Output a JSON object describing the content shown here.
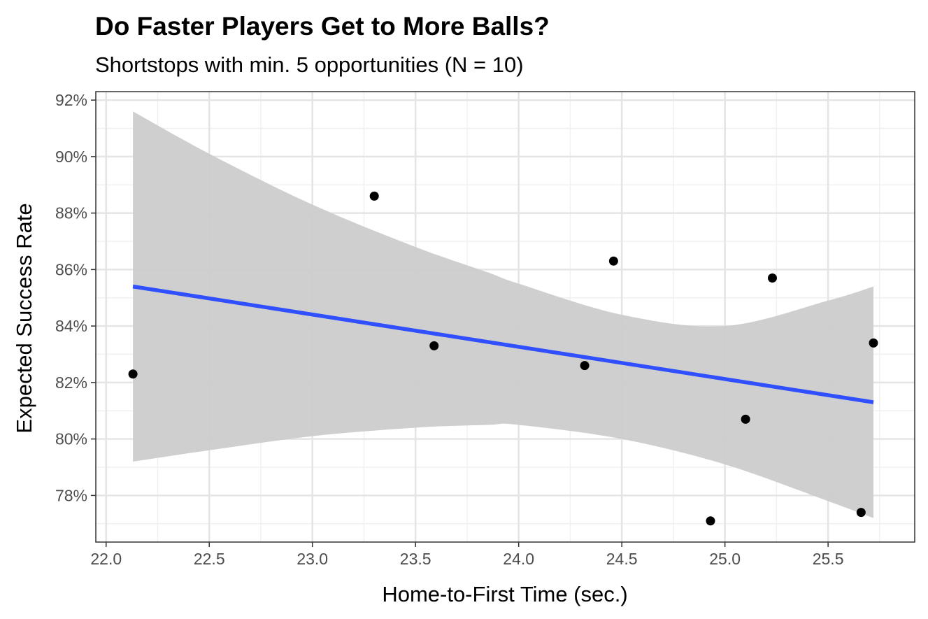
{
  "chart_data": {
    "type": "scatter",
    "title": "Do Faster Players Get to More Balls?",
    "subtitle": "Shortstops with min. 5 opportunities (N = 10)",
    "xlabel": "Home-to-First Time (sec.)",
    "ylabel": "Expected Success Rate",
    "xlim": [
      21.95,
      25.92
    ],
    "ylim": [
      76.35,
      92.3
    ],
    "x_ticks": [
      22.0,
      22.5,
      23.0,
      23.5,
      24.0,
      24.5,
      25.0,
      25.5
    ],
    "x_tick_labels": [
      "22.0",
      "22.5",
      "23.0",
      "23.5",
      "24.0",
      "24.5",
      "25.0",
      "25.5"
    ],
    "y_ticks": [
      78,
      80,
      82,
      84,
      86,
      88,
      90,
      92
    ],
    "y_tick_labels": [
      "78%",
      "80%",
      "82%",
      "84%",
      "86%",
      "88%",
      "90%",
      "92%"
    ],
    "grid": true,
    "points": [
      {
        "x": 22.13,
        "y": 82.3
      },
      {
        "x": 23.3,
        "y": 88.6
      },
      {
        "x": 23.59,
        "y": 83.3
      },
      {
        "x": 24.32,
        "y": 82.6
      },
      {
        "x": 24.46,
        "y": 86.3
      },
      {
        "x": 24.93,
        "y": 77.1
      },
      {
        "x": 25.1,
        "y": 80.7
      },
      {
        "x": 25.23,
        "y": 85.7
      },
      {
        "x": 25.66,
        "y": 77.4
      },
      {
        "x": 25.72,
        "y": 83.4
      }
    ],
    "trend_line": {
      "x": [
        22.13,
        25.72
      ],
      "y": [
        85.4,
        81.3
      ]
    },
    "confidence_band": {
      "x": [
        22.13,
        22.5,
        23.0,
        23.5,
        23.85,
        24.0,
        24.5,
        25.0,
        25.5,
        25.72
      ],
      "upper": [
        91.6,
        90.1,
        88.3,
        86.8,
        85.9,
        85.5,
        84.4,
        84.0,
        84.9,
        85.4
      ],
      "lower": [
        79.2,
        79.6,
        80.1,
        80.4,
        80.5,
        80.5,
        80.0,
        79.1,
        77.8,
        77.2
      ]
    },
    "colors": {
      "point": "#000000",
      "trend_line": "#3050ff",
      "band": "#cccccc",
      "grid_major": "#e5e5e5",
      "grid_minor": "#f0f0f0",
      "panel_border": "#333333"
    }
  }
}
